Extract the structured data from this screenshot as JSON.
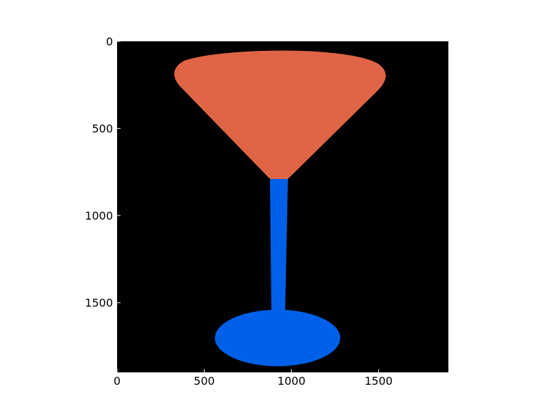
{
  "plot": {
    "xlim": [
      0,
      1900
    ],
    "ylim": [
      1900,
      0
    ],
    "x_ticks": [
      {
        "value": 0,
        "label": "0"
      },
      {
        "value": 500,
        "label": "500"
      },
      {
        "value": 1000,
        "label": "1000"
      },
      {
        "value": 1500,
        "label": "1500"
      }
    ],
    "y_ticks": [
      {
        "value": 0,
        "label": "0"
      },
      {
        "value": 500,
        "label": "500"
      },
      {
        "value": 1000,
        "label": "1000"
      },
      {
        "value": 1500,
        "label": "1500"
      }
    ]
  },
  "image": {
    "background_color": "#000000",
    "regions": [
      {
        "name": "glass-bowl",
        "color": "#e06546"
      },
      {
        "name": "glass-stem",
        "color": "#0061e8"
      },
      {
        "name": "glass-base",
        "color": "#0061e8"
      }
    ]
  }
}
